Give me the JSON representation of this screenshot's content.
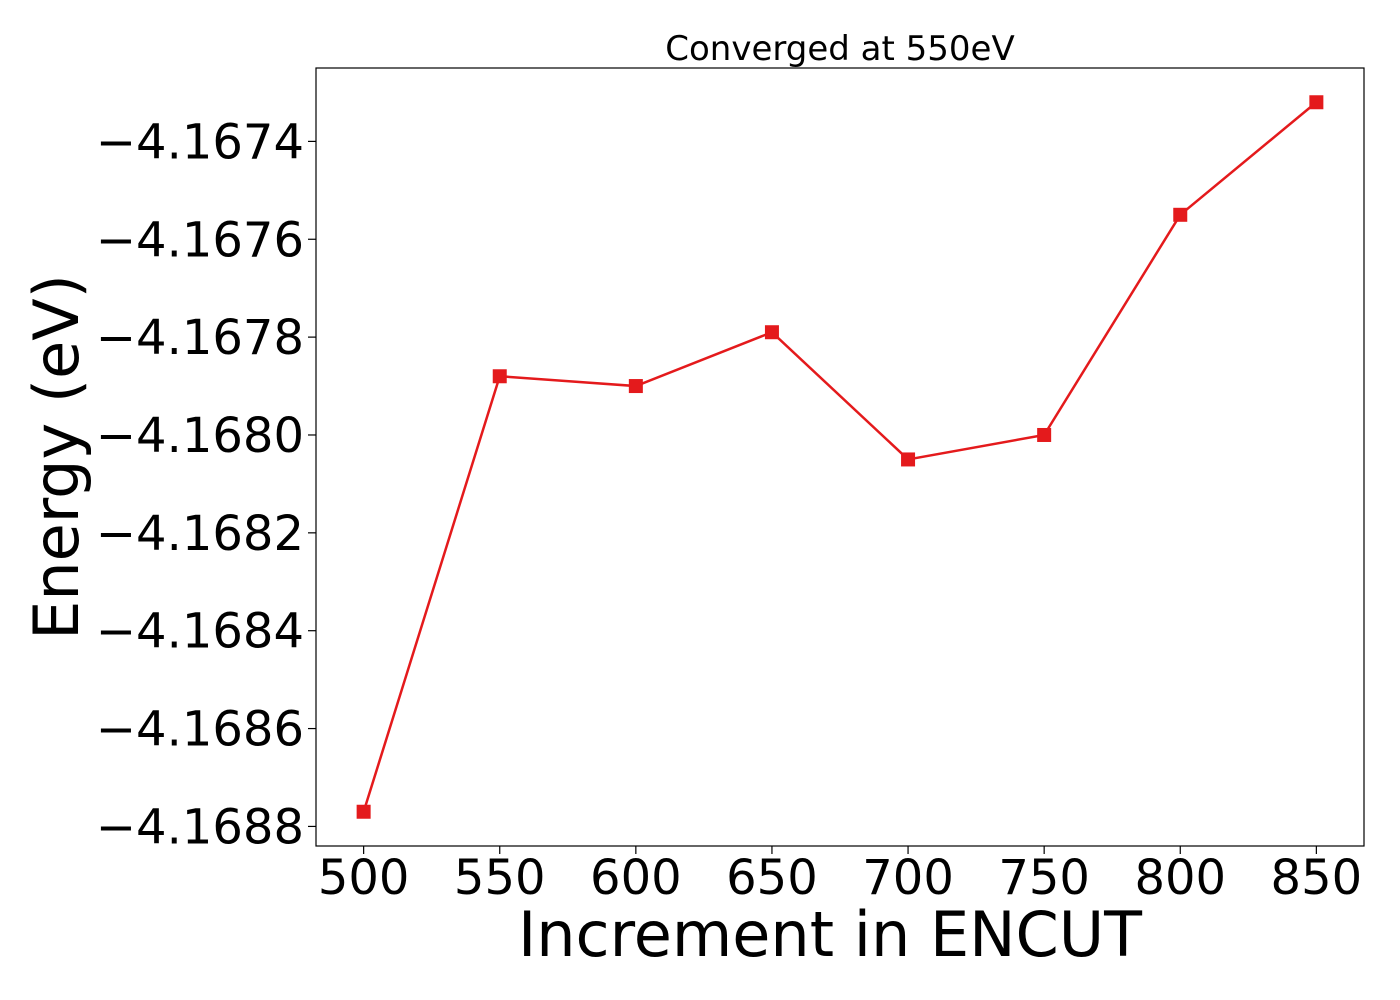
{
  "chart_data": {
    "type": "line",
    "title": "Converged at 550eV",
    "xlabel": "Increment in ENCUT",
    "ylabel": "Energy (eV)",
    "x": [
      500,
      550,
      600,
      650,
      700,
      750,
      800,
      850
    ],
    "series": [
      {
        "values": [
          -4.16877,
          -4.16788,
          -4.1679,
          -4.16779,
          -4.16805,
          -4.168,
          -4.16755,
          -4.16732
        ],
        "color": "#e41a1c",
        "marker": "square"
      }
    ],
    "xticks": [
      500,
      550,
      600,
      650,
      700,
      750,
      800,
      850
    ],
    "xtick_labels": [
      "500",
      "550",
      "600",
      "650",
      "700",
      "750",
      "800",
      "850"
    ],
    "yticks": [
      -4.1688,
      -4.1686,
      -4.1684,
      -4.1682,
      -4.168,
      -4.1678,
      -4.1676,
      -4.1674
    ],
    "ytick_labels": [
      "−4.1688",
      "−4.1686",
      "−4.1684",
      "−4.1682",
      "−4.1680",
      "−4.1678",
      "−4.1676",
      "−4.1674"
    ],
    "xlim": [
      482.5,
      867.5
    ],
    "ylim": [
      -4.16884,
      -4.16725
    ],
    "grid": false
  }
}
